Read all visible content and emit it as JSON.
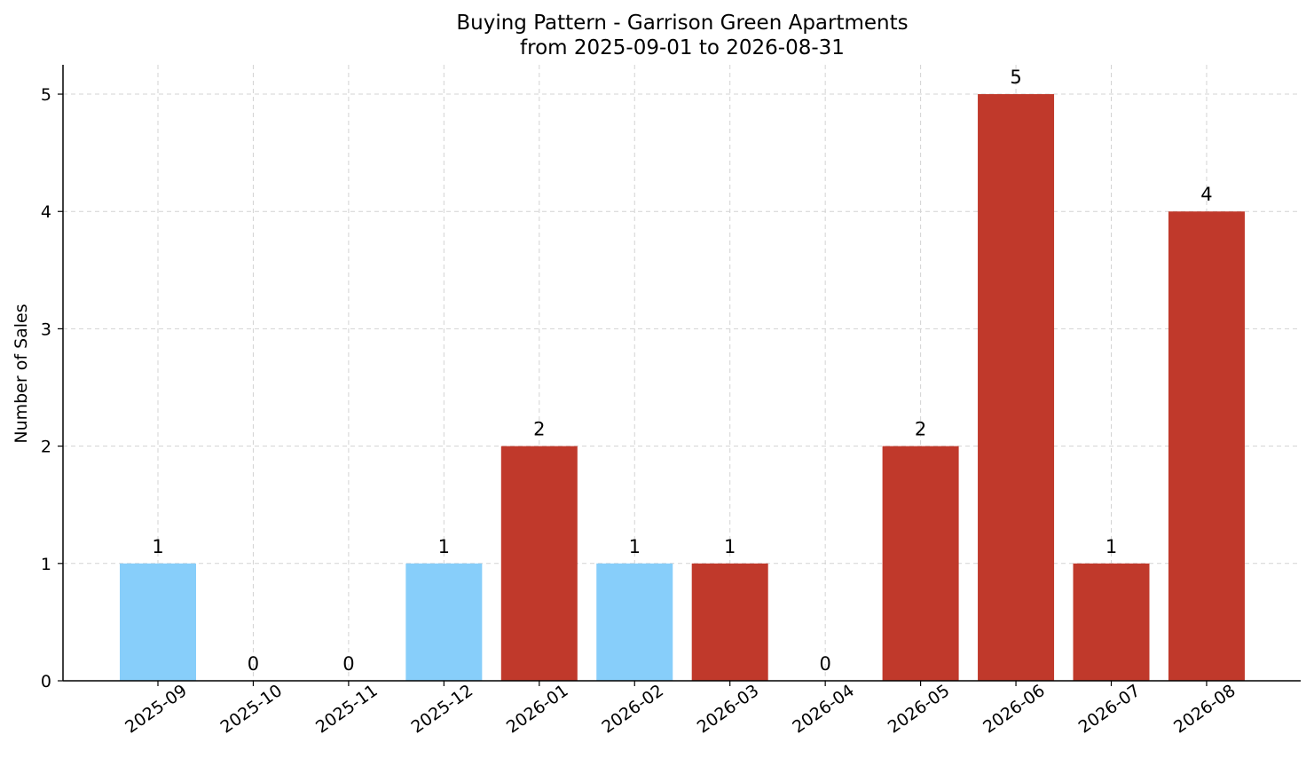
{
  "chart_data": {
    "type": "bar",
    "title": "Buying Pattern - Garrison Green Apartments",
    "subtitle": "from 2025-09-01 to 2026-08-31",
    "xlabel": "",
    "ylabel": "Number of Sales",
    "categories": [
      "2025-09",
      "2025-10",
      "2025-11",
      "2025-12",
      "2026-01",
      "2026-02",
      "2026-03",
      "2026-04",
      "2026-05",
      "2026-06",
      "2026-07",
      "2026-08"
    ],
    "values": [
      1,
      0,
      0,
      1,
      2,
      1,
      1,
      0,
      2,
      5,
      1,
      4
    ],
    "bar_colors": [
      "#87cefa",
      "#87cefa",
      "#87cefa",
      "#87cefa",
      "#c0392b",
      "#87cefa",
      "#c0392b",
      "#c0392b",
      "#c0392b",
      "#c0392b",
      "#c0392b",
      "#c0392b"
    ],
    "yticks": [
      0,
      1,
      2,
      3,
      4,
      5
    ],
    "ylim": [
      0,
      5.25
    ],
    "grid": true,
    "legend": "none"
  }
}
